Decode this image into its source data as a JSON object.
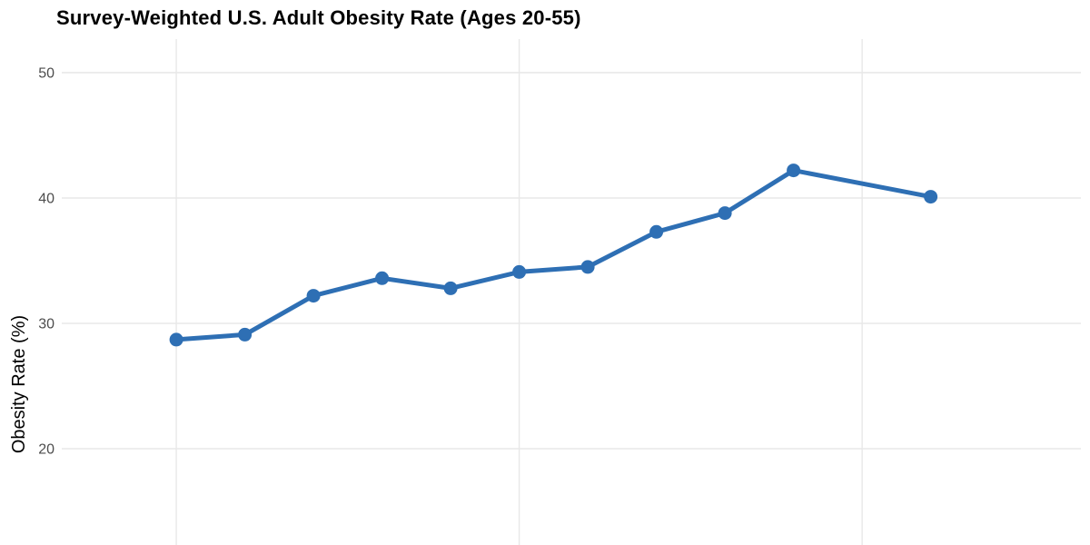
{
  "chart_data": {
    "type": "line",
    "title": "Survey-Weighted U.S. Adult Obesity Rate (Ages 20-55)",
    "xlabel": "",
    "ylabel": "Obesity Rate (%)",
    "x": [
      2000,
      2002,
      2004,
      2006,
      2008,
      2010,
      2012,
      2014,
      2016,
      2018,
      2022
    ],
    "values": [
      28.7,
      29.1,
      32.2,
      33.6,
      32.8,
      34.1,
      34.5,
      37.3,
      38.8,
      42.2,
      40.1
    ],
    "series_name": "Obesity rate",
    "yticks": [
      20,
      30,
      40,
      50
    ],
    "ytick_labels": [
      "20",
      "30",
      "40",
      "50"
    ],
    "x_gridlines": [
      2000,
      2010,
      2020
    ],
    "xlim": [
      1996.66,
      2026.38
    ],
    "ylim": [
      12.32,
      52.68
    ],
    "grid": "major-only",
    "legend": "none",
    "x_axis_labels_visible": false,
    "colors": {
      "line": "#2E6FB4",
      "marker": "#2E6FB4",
      "gridline": "#E8E8E8",
      "tick_text": "#4D4D4D",
      "title_text": "#000000",
      "background": "#FFFFFF"
    }
  }
}
